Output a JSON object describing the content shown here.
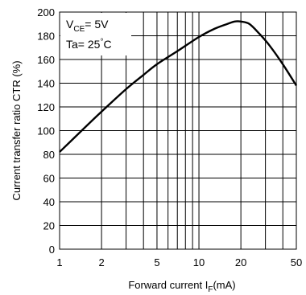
{
  "chart_data": {
    "type": "line",
    "xlabel": "Forward current I",
    "xlabel_sub": "F",
    "xlabel_unit": "(mA)",
    "ylabel": "Current transfer ratio CTR (%)",
    "xscale": "log",
    "xlim": [
      1,
      50
    ],
    "ylim": [
      0,
      200
    ],
    "x_ticks": [
      "1",
      "2",
      "5",
      "10",
      "20",
      "50"
    ],
    "y_ticks": [
      "0",
      "20",
      "40",
      "60",
      "80",
      "100",
      "120",
      "140",
      "160",
      "180",
      "200"
    ],
    "grid": true,
    "annotation": {
      "vce_prefix": "V",
      "vce_sub": "CE",
      "vce_value": "= 5V",
      "ta_prefix": "Ta= 25",
      "ta_deg": "°",
      "ta_unit": "C"
    },
    "series": [
      {
        "x": [
          1,
          1.5,
          2,
          3,
          4,
          5,
          7,
          10,
          13,
          16,
          18,
          20,
          23,
          27,
          32,
          40,
          50
        ],
        "y": [
          82,
          102,
          116,
          135,
          147,
          156,
          167,
          179,
          186,
          190,
          192,
          192,
          190,
          182,
          172,
          156,
          138
        ]
      }
    ]
  }
}
